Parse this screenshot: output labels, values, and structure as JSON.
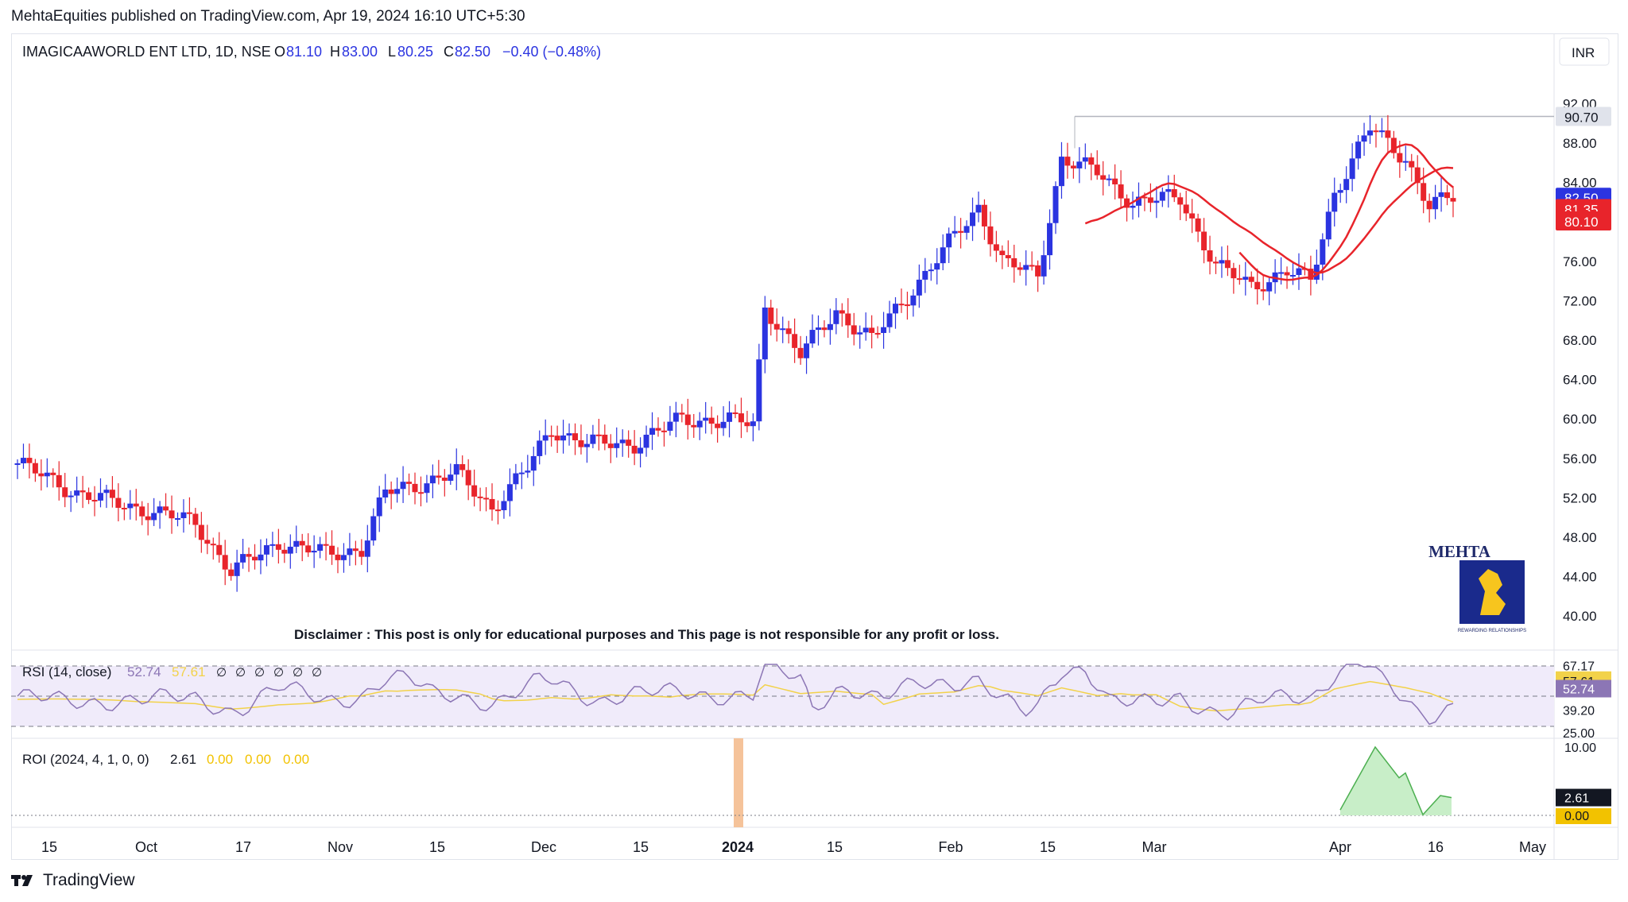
{
  "header": {
    "published_line": "MehtaEquities published on TradingView.com, Apr 19, 2024 16:10 UTC+5:30"
  },
  "legend": {
    "symbol": "IMAGICAAWORLD ENT LTD, 1D, NSE",
    "open_label": "O",
    "open": "81.10",
    "high_label": "H",
    "high": "83.00",
    "low_label": "L",
    "low": "80.25",
    "close_label": "C",
    "close": "82.50",
    "change": "−0.40 (−0.48%)"
  },
  "currency": "INR",
  "disclaimer": "Disclaimer : This post is only for educational purposes and This page is not responsible for any profit or loss.",
  "logo": {
    "title": "MEHTA",
    "tagline": "REWARDING RELATIONSHIPS"
  },
  "rsi_pane": {
    "label": "RSI (14, close)",
    "value": "52.74",
    "ma_value": "57.61",
    "na_marks": [
      "∅",
      "∅",
      "∅",
      "∅",
      "∅",
      "∅"
    ],
    "axis_labels": [
      "67.17",
      "57.61",
      "52.74",
      "39.20",
      "25.00"
    ]
  },
  "roi_pane": {
    "label": "ROI (2024, 4, 1, 0, 0)",
    "value": "2.61",
    "extra_values": [
      "0.00",
      "0.00",
      "0.00"
    ],
    "axis_labels": [
      "10.00",
      "2.61",
      "0.00"
    ]
  },
  "price_badges": [
    "90.70",
    "82.50",
    "81.35",
    "80.10"
  ],
  "footer": {
    "brand": "TradingView"
  },
  "colors": {
    "up": "#2b34e0",
    "down": "#e8242b",
    "ma": "#e8242b",
    "rsi_line": "#8c76b5",
    "rsi_ma": "#f2d24a",
    "rsi_band": "#f0ebfa",
    "roi_fill": "#c8eec8",
    "roi_line": "#4caf50",
    "year_marker": "#f5c39a"
  },
  "chart_data": [
    {
      "type": "candlestick",
      "title": "IMAGICAAWORLD ENT LTD, 1D, NSE",
      "ylim": [
        38,
        93
      ],
      "y_ticks": [
        "92.00",
        "88.00",
        "84.00",
        "76.00",
        "72.00",
        "68.00",
        "64.00",
        "60.00",
        "56.00",
        "52.00",
        "48.00",
        "44.00",
        "40.00"
      ],
      "x_tick_labels": [
        "15",
        "Oct",
        "17",
        "Nov",
        "15",
        "Dec",
        "15",
        "2024",
        "15",
        "Feb",
        "15",
        "Mar",
        "Apr",
        "16",
        "May"
      ],
      "horizontal_level": 90.7,
      "last_close": 82.5,
      "moving_averages": [
        81.35,
        80.1
      ]
    },
    {
      "type": "line",
      "title": "RSI (14, close)",
      "ylim": [
        25,
        70
      ],
      "last_value": 52.74,
      "ma_last_value": 57.61,
      "band": [
        39.2,
        67.17
      ]
    },
    {
      "type": "area",
      "title": "ROI (2024, 4, 1, 0, 0)",
      "ylim": [
        0,
        10
      ],
      "last_value": 2.61
    }
  ]
}
